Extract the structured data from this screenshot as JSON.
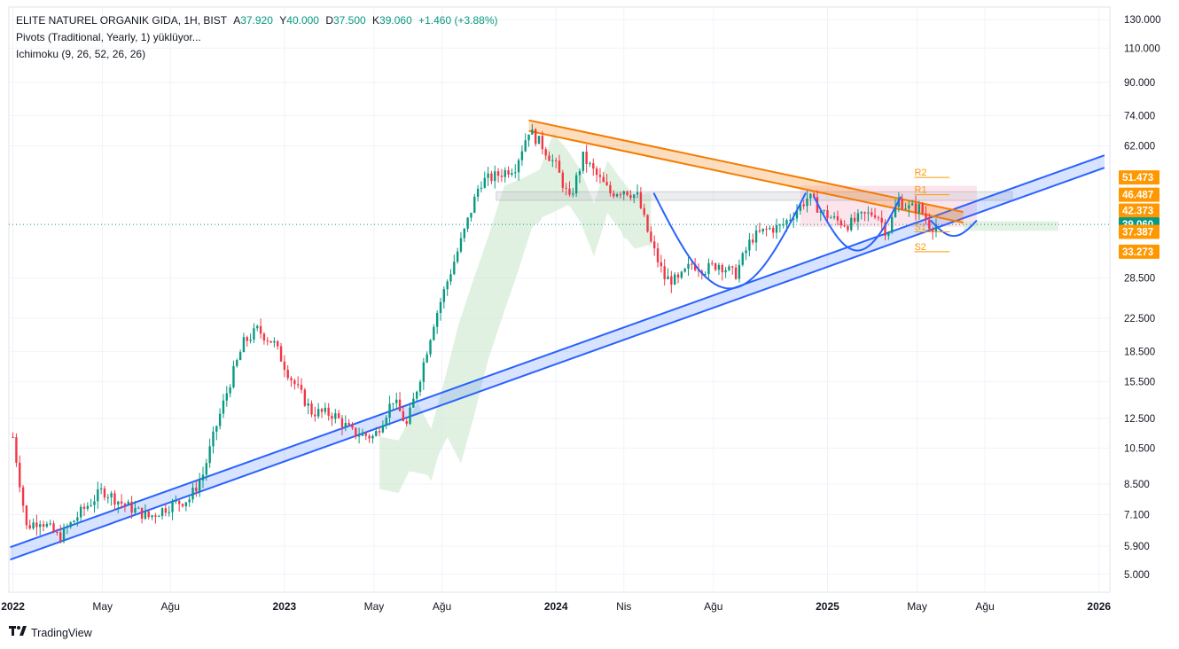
{
  "header": {
    "symbol": "ELITE NATUREL ORGANIK GIDA, 1H, BIST",
    "open_label": "A",
    "open": "37.920",
    "high_label": "Y",
    "high": "40.000",
    "low_label": "D",
    "low": "37.500",
    "close_label": "K",
    "close": "39.060",
    "change": "+1.460 (+3.88%)",
    "indicator1": "Pivots (Traditional, Yearly, 1) yüklüyor...",
    "indicator2": "Ichimoku (9, 26, 52, 26, 26)"
  },
  "footer": {
    "brand": "TradingView"
  },
  "colors": {
    "up": "#089981",
    "down": "#f23645",
    "trend_blue": "#2962ff",
    "channel_orange": "#f57c00",
    "pivot": "#ff9800",
    "cloud_green": "#c8e6c9",
    "cloud_red": "#f8bbd0"
  },
  "chart_data": {
    "type": "candlestick",
    "y_scale": "log",
    "ylim": [
      4.5,
      140
    ],
    "x_ticks": [
      {
        "label": "2022",
        "t": 2022.0
      },
      {
        "label": "May",
        "t": 2022.33
      },
      {
        "label": "Ağu",
        "t": 2022.58
      },
      {
        "label": "2023",
        "t": 2023.0
      },
      {
        "label": "May",
        "t": 2023.33
      },
      {
        "label": "Ağu",
        "t": 2023.58
      },
      {
        "label": "2024",
        "t": 2024.0
      },
      {
        "label": "Nis",
        "t": 2024.25
      },
      {
        "label": "Ağu",
        "t": 2024.58
      },
      {
        "label": "2025",
        "t": 2025.0
      },
      {
        "label": "May",
        "t": 2025.33
      },
      {
        "label": "Ağu",
        "t": 2025.58
      },
      {
        "label": "2026",
        "t": 2026.0
      }
    ],
    "y_ticks": [
      "130.000",
      "110.000",
      "90.000",
      "74.000",
      "62.000",
      "28.500",
      "22.500",
      "18.500",
      "15.500",
      "12.500",
      "10.500",
      "8.500",
      "7.100",
      "5.900",
      "5.000"
    ],
    "y_tick_values": [
      130,
      110,
      90,
      74,
      62,
      28.5,
      22.5,
      18.5,
      15.5,
      12.5,
      10.5,
      8.5,
      7.1,
      5.9,
      5.0
    ],
    "price_badges": [
      {
        "label": "51.473",
        "value": 51.473,
        "color": "#ff9800"
      },
      {
        "label": "46.487",
        "value": 46.487,
        "color": "#ff9800"
      },
      {
        "label": "42.373",
        "value": 42.373,
        "color": "#ff9800"
      },
      {
        "label": "39.060",
        "value": 39.06,
        "color": "#089981"
      },
      {
        "label": "37.387",
        "value": 37.387,
        "color": "#ff9800"
      },
      {
        "label": "33.273",
        "value": 33.273,
        "color": "#ff9800"
      }
    ],
    "pivots": [
      {
        "label": "R2",
        "value": 51.473
      },
      {
        "label": "R1",
        "value": 46.487
      },
      {
        "label": "S1",
        "value": 37.387
      },
      {
        "label": "S2",
        "value": 33.273
      }
    ],
    "trendline_support": {
      "from": {
        "t": 2021.99,
        "v": 5.45
      },
      "to": {
        "t": 2026.02,
        "v": 54.5
      }
    },
    "trendline_resistance": {
      "from": {
        "t": 2023.9,
        "v": 72.0
      },
      "to": {
        "t": 2025.5,
        "v": 42.0
      }
    },
    "resistance_zone": [
      45.0,
      47.3
    ],
    "resistance_zone_range": [
      2023.78,
      2025.68
    ],
    "last_price": 39.06,
    "series_anchor": [
      [
        2022.0,
        11.2
      ],
      [
        2022.05,
        6.6
      ],
      [
        2022.1,
        6.9
      ],
      [
        2022.17,
        6.2
      ],
      [
        2022.25,
        7.2
      ],
      [
        2022.33,
        8.2
      ],
      [
        2022.4,
        7.6
      ],
      [
        2022.5,
        7.0
      ],
      [
        2022.58,
        7.5
      ],
      [
        2022.65,
        7.8
      ],
      [
        2022.7,
        9.0
      ],
      [
        2022.75,
        12.0
      ],
      [
        2022.8,
        15.5
      ],
      [
        2022.85,
        19.5
      ],
      [
        2022.9,
        21.0
      ],
      [
        2022.96,
        19.5
      ],
      [
        2023.02,
        16.0
      ],
      [
        2023.1,
        13.0
      ],
      [
        2023.18,
        12.8
      ],
      [
        2023.25,
        11.5
      ],
      [
        2023.33,
        11.2
      ],
      [
        2023.4,
        14.0
      ],
      [
        2023.45,
        12.0
      ],
      [
        2023.5,
        16.0
      ],
      [
        2023.55,
        22.0
      ],
      [
        2023.6,
        28.0
      ],
      [
        2023.66,
        37.0
      ],
      [
        2023.72,
        50.0
      ],
      [
        2023.78,
        52.0
      ],
      [
        2023.85,
        55.0
      ],
      [
        2023.9,
        68.0
      ],
      [
        2023.95,
        62.0
      ],
      [
        2024.0,
        55.0
      ],
      [
        2024.05,
        45.0
      ],
      [
        2024.1,
        58.0
      ],
      [
        2024.15,
        52.0
      ],
      [
        2024.2,
        47.0
      ],
      [
        2024.25,
        48.0
      ],
      [
        2024.3,
        46.0
      ],
      [
        2024.35,
        35.0
      ],
      [
        2024.4,
        28.5
      ],
      [
        2024.45,
        28.0
      ],
      [
        2024.5,
        31.0
      ],
      [
        2024.55,
        30.0
      ],
      [
        2024.6,
        31.0
      ],
      [
        2024.66,
        29.0
      ],
      [
        2024.72,
        36.0
      ],
      [
        2024.78,
        38.0
      ],
      [
        2024.83,
        38.5
      ],
      [
        2024.88,
        42.0
      ],
      [
        2024.93,
        46.0
      ],
      [
        2024.98,
        42.0
      ],
      [
        2025.03,
        40.0
      ],
      [
        2025.08,
        39.0
      ],
      [
        2025.13,
        41.0
      ],
      [
        2025.18,
        42.0
      ],
      [
        2025.22,
        37.0
      ],
      [
        2025.26,
        45.0
      ],
      [
        2025.3,
        43.0
      ],
      [
        2025.34,
        43.0
      ],
      [
        2025.38,
        38.5
      ],
      [
        2025.41,
        39.06
      ]
    ]
  }
}
